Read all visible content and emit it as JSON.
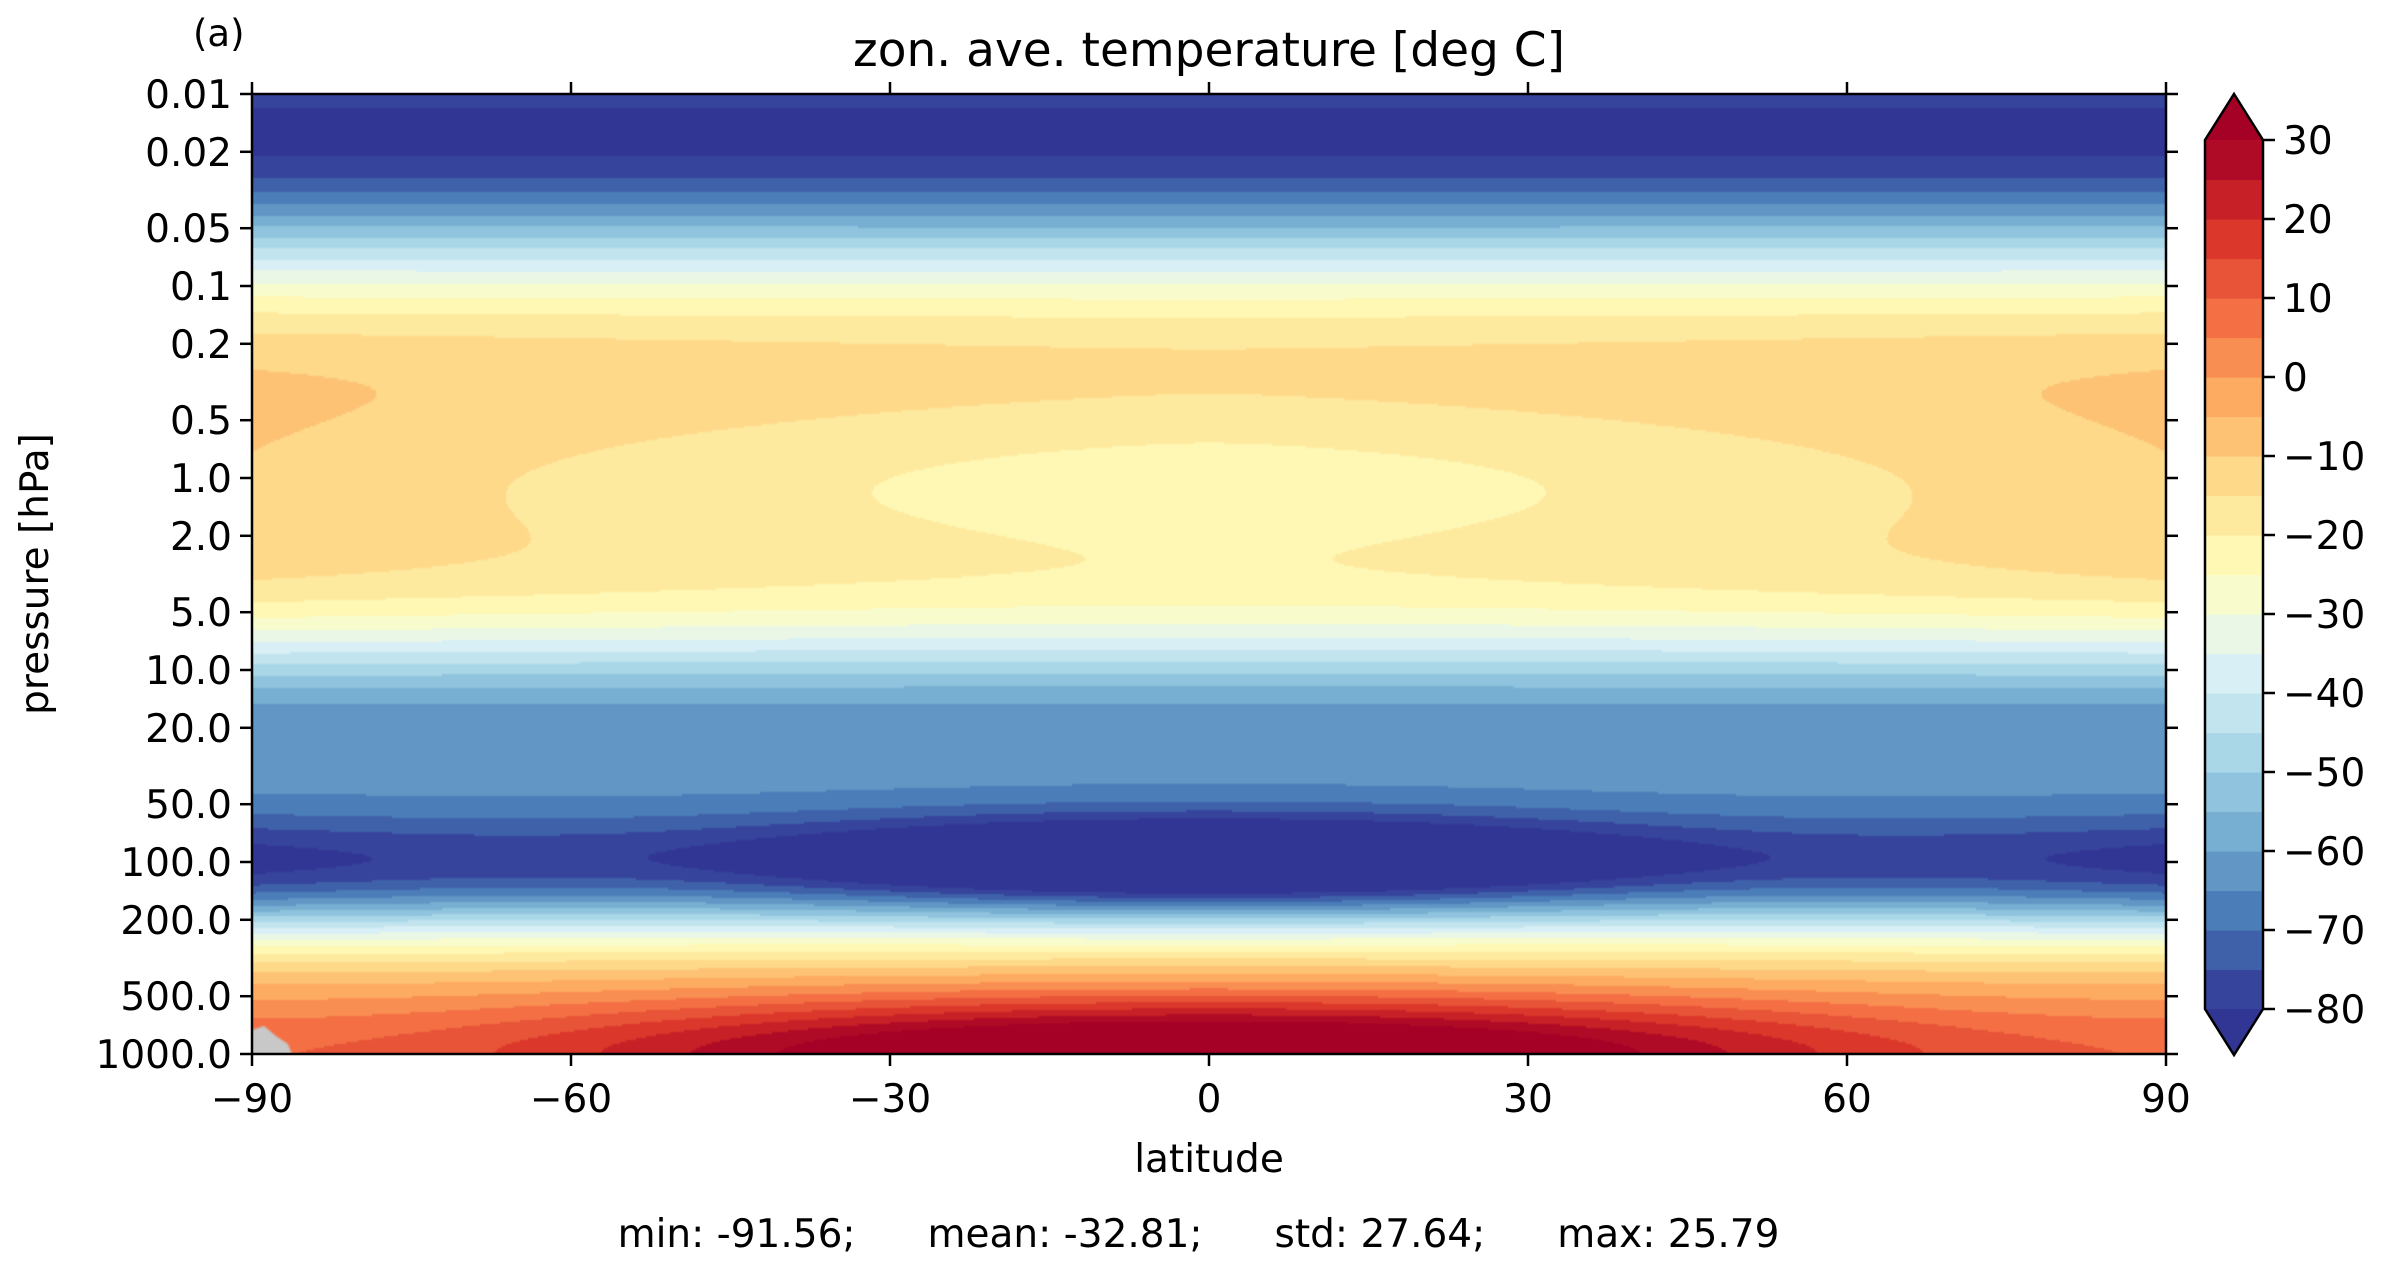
{
  "chart_data": {
    "type": "heatmap",
    "panel_label": "(a)",
    "title": "zon. ave. temperature [deg C]",
    "xlabel": "latitude",
    "ylabel": "pressure [hPa]",
    "x_ticks": [
      "−90",
      "−60",
      "−30",
      "0",
      "30",
      "60",
      "90"
    ],
    "x_tick_values": [
      -90,
      -60,
      -30,
      0,
      30,
      60,
      90
    ],
    "xlim": [
      -90,
      90
    ],
    "y_ticks": [
      "0.01",
      "0.02",
      "0.05",
      "0.1",
      "0.2",
      "0.5",
      "1.0",
      "2.0",
      "5.0",
      "10.0",
      "20.0",
      "50.0",
      "100.0",
      "200.0",
      "500.0",
      "1000.0"
    ],
    "y_tick_values": [
      0.01,
      0.02,
      0.05,
      0.1,
      0.2,
      0.5,
      1.0,
      2.0,
      5.0,
      10.0,
      20.0,
      50.0,
      100.0,
      200.0,
      500.0,
      1000.0
    ],
    "ylim": [
      1000,
      0.01
    ],
    "y_scale": "log",
    "y_inverted": true,
    "colorbar": {
      "colormap": "RdYlBu_r",
      "levels_min": -80,
      "levels_max": 30,
      "level_step": 5,
      "extend": "both",
      "tick_labels": [
        "30",
        "20",
        "10",
        "0",
        "−10",
        "−20",
        "−30",
        "−40",
        "−50",
        "−60",
        "−70",
        "−80"
      ],
      "tick_values": [
        30,
        20,
        10,
        0,
        -10,
        -20,
        -30,
        -40,
        -50,
        -60,
        -70,
        -80
      ]
    },
    "stats": {
      "min": "min: -91.56;",
      "mean": "mean: -32.81;",
      "std": "std: 27.64;",
      "max": "max: 25.79"
    }
  }
}
